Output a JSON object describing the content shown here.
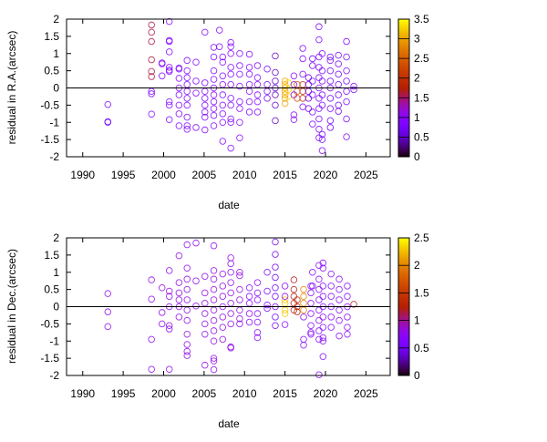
{
  "chart_data": [
    {
      "type": "scatter",
      "title": "",
      "xlabel": "date",
      "ylabel": "residual in R.A.(arcsec)",
      "xlim": [
        1988,
        2028
      ],
      "ylim": [
        -2,
        2
      ],
      "xticks": [
        1990,
        1995,
        2000,
        2005,
        2010,
        2015,
        2020,
        2025
      ],
      "yticks": [
        -2,
        -1.5,
        -1,
        -0.5,
        0,
        0.5,
        1,
        1.5,
        2
      ],
      "colorbar": {
        "range": [
          0,
          3.5
        ],
        "ticks": [
          0,
          0.5,
          1,
          1.5,
          2,
          2.5,
          3,
          3.5
        ]
      },
      "zero_line": true,
      "groups": [
        {
          "date": 1993.1,
          "c": 0.8,
          "residuals": [
            -0.48,
            -0.98,
            -1.0
          ]
        },
        {
          "date": 1998.5,
          "c": 1.6,
          "residuals": [
            1.83,
            1.62,
            1.35,
            0.82,
            0.48,
            0.33
          ]
        },
        {
          "date": 1998.5,
          "c": 0.9,
          "residuals": [
            -0.1,
            -0.17,
            -0.76
          ]
        },
        {
          "date": 1999.8,
          "c": 0.9,
          "residuals": [
            0.73,
            0.7,
            0.35
          ]
        },
        {
          "date": 2000.7,
          "c": 0.9,
          "residuals": [
            1.93,
            1.38,
            1.35,
            1.05,
            0.6,
            0.52,
            0.48,
            -0.4,
            -0.5,
            -0.92
          ]
        },
        {
          "date": 2001.9,
          "c": 0.9,
          "residuals": [
            0.58,
            0.55,
            0.28,
            0,
            -0.2,
            -0.5,
            -0.75,
            -1.1
          ]
        },
        {
          "date": 2002.9,
          "c": 0.9,
          "residuals": [
            0.8,
            0.5,
            0.3,
            0.1,
            -0.1,
            -0.3,
            -0.5,
            -0.85,
            -1.1,
            -1.2
          ]
        },
        {
          "date": 2004.0,
          "c": 0.9,
          "residuals": [
            0.75,
            0.2,
            -0.15,
            -1.15
          ]
        },
        {
          "date": 2005.1,
          "c": 0.9,
          "residuals": [
            1.62,
            0.15,
            -0.1,
            -0.3,
            -0.5,
            -0.7,
            -0.85,
            -1.22
          ]
        },
        {
          "date": 2006.2,
          "c": 0.9,
          "residuals": [
            1.18,
            0.9,
            0.5,
            0.25,
            0,
            -0.2,
            -0.4,
            -0.6,
            -0.8,
            -1.1
          ]
        },
        {
          "date": 2006.9,
          "c": 0.9,
          "residuals": [
            1.68,
            1.2
          ]
        },
        {
          "date": 2007.3,
          "c": 0.9,
          "residuals": [
            0.9,
            0.75,
            0.35,
            0.1,
            -0.2,
            -0.5,
            -0.75,
            -1.0,
            -1.55
          ]
        },
        {
          "date": 2008.3,
          "c": 0.9,
          "residuals": [
            1.32,
            1.2,
            1.0,
            0.6,
            0.4,
            0.1,
            -0.3,
            -0.5,
            -0.9,
            -1.0,
            -1.75
          ]
        },
        {
          "date": 2009.4,
          "c": 0.9,
          "residuals": [
            1.0,
            0.65,
            0.4,
            0.05,
            -0.4,
            -0.6,
            -1.0,
            -1.45
          ]
        },
        {
          "date": 2010.6,
          "c": 0.9,
          "residuals": [
            0.98,
            0.6,
            0.4,
            0.1,
            -0.1,
            -0.4,
            -0.7
          ]
        },
        {
          "date": 2011.6,
          "c": 0.9,
          "residuals": [
            0.65,
            0.3,
            0.1,
            -0.2,
            -0.4,
            -0.7
          ]
        },
        {
          "date": 2012.8,
          "c": 0.7,
          "residuals": [
            0.55,
            0.1,
            -0.1,
            -0.3
          ]
        },
        {
          "date": 2013.8,
          "c": 0.5,
          "residuals": [
            0.93,
            0.45,
            0.2,
            0,
            -0.2,
            -0.5,
            -0.95
          ]
        },
        {
          "date": 2015.0,
          "c": 3.0,
          "residuals": [
            0.2,
            0.1,
            0,
            -0.1,
            -0.2,
            -0.3,
            -0.45
          ]
        },
        {
          "date": 2015.4,
          "c": 3.3,
          "residuals": [
            0.15,
            -0.05,
            -0.25
          ]
        },
        {
          "date": 2016.1,
          "c": 1.0,
          "residuals": [
            0.35,
            0.1,
            -0.2,
            -0.78,
            -0.92
          ]
        },
        {
          "date": 2016.5,
          "c": 2.4,
          "residuals": [
            0.1,
            -0.1,
            -0.3
          ]
        },
        {
          "date": 2017.2,
          "c": 2.0,
          "residuals": [
            0.1,
            -0.1,
            -0.3
          ]
        },
        {
          "date": 2017.2,
          "c": 0.9,
          "residuals": [
            1.15,
            0.85,
            0.4,
            -0.55
          ]
        },
        {
          "date": 2017.9,
          "c": 0.6,
          "residuals": [
            0.3,
            0.1,
            -0.1,
            -0.3,
            -0.6
          ]
        },
        {
          "date": 2018.4,
          "c": 0.8,
          "residuals": [
            0.85,
            0.65,
            0.2,
            -0.2,
            -0.7,
            -1.05
          ]
        },
        {
          "date": 2019.2,
          "c": 0.8,
          "residuals": [
            1.78,
            1.4,
            0.9,
            0.6,
            0.3,
            0,
            -0.3,
            -0.6,
            -0.9,
            -1.2,
            -1.45
          ]
        },
        {
          "date": 2019.6,
          "c": 0.8,
          "residuals": [
            1.0,
            0.5,
            0.2,
            -0.2,
            -0.5,
            -1.35,
            -1.5,
            -1.82
          ]
        },
        {
          "date": 2020.6,
          "c": 0.7,
          "residuals": [
            0.9,
            0.8,
            0.5,
            0.2,
            0,
            -0.3,
            -0.6,
            -0.95,
            -1.15
          ]
        },
        {
          "date": 2021.6,
          "c": 0.7,
          "residuals": [
            0.95,
            0.7,
            0.4,
            0.1,
            -0.2,
            -0.5,
            -0.68
          ]
        },
        {
          "date": 2022.6,
          "c": 0.8,
          "residuals": [
            1.35,
            0.9,
            0.5,
            0.2,
            -0.1,
            -0.4,
            -0.9,
            -1.42
          ]
        },
        {
          "date": 2023.5,
          "c": 0.8,
          "residuals": [
            0.05,
            -0.05
          ]
        }
      ]
    },
    {
      "type": "scatter",
      "title": "",
      "xlabel": "date",
      "ylabel": "residual in Dec.(arcsec)",
      "xlim": [
        1988,
        2028
      ],
      "ylim": [
        -2,
        2
      ],
      "xticks": [
        1990,
        1995,
        2000,
        2005,
        2010,
        2015,
        2020,
        2025
      ],
      "yticks": [
        -2,
        -1.5,
        -1,
        -0.5,
        0,
        0.5,
        1,
        1.5,
        2
      ],
      "colorbar": {
        "range": [
          0,
          2.5
        ],
        "ticks": [
          0,
          0.5,
          1,
          1.5,
          2,
          2.5
        ]
      },
      "zero_line": true,
      "groups": [
        {
          "date": 1993.1,
          "c": 0.8,
          "residuals": [
            0.38,
            -0.15,
            -0.58
          ]
        },
        {
          "date": 1998.5,
          "c": 0.8,
          "residuals": [
            0.78,
            0.22,
            -0.95,
            -1.82
          ]
        },
        {
          "date": 1999.8,
          "c": 0.8,
          "residuals": [
            0.55,
            -0.17,
            -0.5
          ]
        },
        {
          "date": 2000.7,
          "c": 0.8,
          "residuals": [
            1.05,
            0.45,
            0.3,
            0.0,
            -0.55,
            -0.65,
            -1.82
          ]
        },
        {
          "date": 2001.9,
          "c": 0.8,
          "residuals": [
            1.48,
            0.7,
            0.4,
            0.2,
            0,
            -0.3
          ]
        },
        {
          "date": 2002.9,
          "c": 0.8,
          "residuals": [
            1.8,
            1.12,
            0.8,
            0.5,
            0.2,
            -0.1,
            -0.4,
            -0.8,
            -1.1,
            -1.3,
            -1.42
          ]
        },
        {
          "date": 2004.0,
          "c": 0.8,
          "residuals": [
            1.85,
            0.75,
            0.02
          ]
        },
        {
          "date": 2005.1,
          "c": 0.8,
          "residuals": [
            0.88,
            0.4,
            0.1,
            -0.2,
            -0.5,
            -0.8,
            -1.7
          ]
        },
        {
          "date": 2006.2,
          "c": 0.8,
          "residuals": [
            1.77,
            1.05,
            0.8,
            0.5,
            0.2,
            -0.1,
            -0.4,
            -0.7,
            -1.0,
            -1.5,
            -1.58,
            -1.83
          ]
        },
        {
          "date": 2007.3,
          "c": 0.8,
          "residuals": [
            0.95,
            0.6,
            0.3,
            0,
            -0.3,
            -0.6,
            -0.95
          ]
        },
        {
          "date": 2008.3,
          "c": 0.8,
          "residuals": [
            1.42,
            1.25,
            1.0,
            0.7,
            0.4,
            0.1,
            -0.2,
            -0.5,
            -1.17,
            -1.2
          ]
        },
        {
          "date": 2009.4,
          "c": 0.8,
          "residuals": [
            1.0,
            0.9,
            0.5,
            0.2,
            -0.1,
            -0.35,
            -0.5
          ]
        },
        {
          "date": 2010.6,
          "c": 0.7,
          "residuals": [
            0.55,
            0.3,
            0.1,
            -0.2,
            -0.45
          ]
        },
        {
          "date": 2011.6,
          "c": 0.7,
          "residuals": [
            0.7,
            0.4,
            0.2,
            -0.2,
            -0.45,
            -0.75,
            -0.9
          ]
        },
        {
          "date": 2012.8,
          "c": 0.6,
          "residuals": [
            1.0,
            0.45,
            0.05,
            -0.05
          ]
        },
        {
          "date": 2013.8,
          "c": 0.5,
          "residuals": [
            1.88,
            1.52,
            1.15,
            0.85,
            0.55,
            0.3,
            0,
            -0.3,
            -0.55
          ]
        },
        {
          "date": 2015.0,
          "c": 2.3,
          "residuals": [
            0.2,
            0.1,
            -0.1,
            -0.2
          ]
        },
        {
          "date": 2015.0,
          "c": 0.7,
          "residuals": [
            0.6,
            0.3,
            -0.52
          ]
        },
        {
          "date": 2016.1,
          "c": 1.2,
          "residuals": [
            0.78,
            0.5,
            0.3,
            0.1,
            -0.1
          ]
        },
        {
          "date": 2016.5,
          "c": 1.4,
          "residuals": [
            0.2,
            0,
            -0.15
          ]
        },
        {
          "date": 2017.3,
          "c": 2.0,
          "residuals": [
            0.5,
            0.3,
            0.1,
            -0.1
          ]
        },
        {
          "date": 2017.3,
          "c": 0.7,
          "residuals": [
            -0.3,
            -0.95,
            -1.12
          ]
        },
        {
          "date": 2018.2,
          "c": 0.7,
          "residuals": [
            0.6,
            0.4,
            0.1,
            -0.2,
            -0.55,
            -0.75,
            -0.8
          ]
        },
        {
          "date": 2018.4,
          "c": 0.7,
          "residuals": [
            1.0,
            0.6
          ]
        },
        {
          "date": 2019.2,
          "c": 0.7,
          "residuals": [
            1.2,
            0.8,
            0.5,
            0.2,
            -0.1,
            -0.4,
            -0.7,
            -0.95,
            -1.98
          ]
        },
        {
          "date": 2019.7,
          "c": 0.7,
          "residuals": [
            1.27,
            1.12,
            0.6,
            0.3,
            0,
            -0.3,
            -0.6,
            -0.9,
            -1.0,
            -1.45
          ]
        },
        {
          "date": 2020.7,
          "c": 0.7,
          "residuals": [
            0.95,
            0.6,
            0.3,
            0,
            -0.3,
            -0.6
          ]
        },
        {
          "date": 2021.7,
          "c": 0.7,
          "residuals": [
            0.8,
            0.5,
            0.2,
            -0.1,
            -0.4,
            -0.85
          ]
        },
        {
          "date": 2022.7,
          "c": 0.7,
          "residuals": [
            0.6,
            0.3,
            0,
            -0.3,
            -0.6,
            -0.8
          ]
        },
        {
          "date": 2023.5,
          "c": 1.2,
          "residuals": [
            0.07
          ]
        }
      ]
    }
  ]
}
